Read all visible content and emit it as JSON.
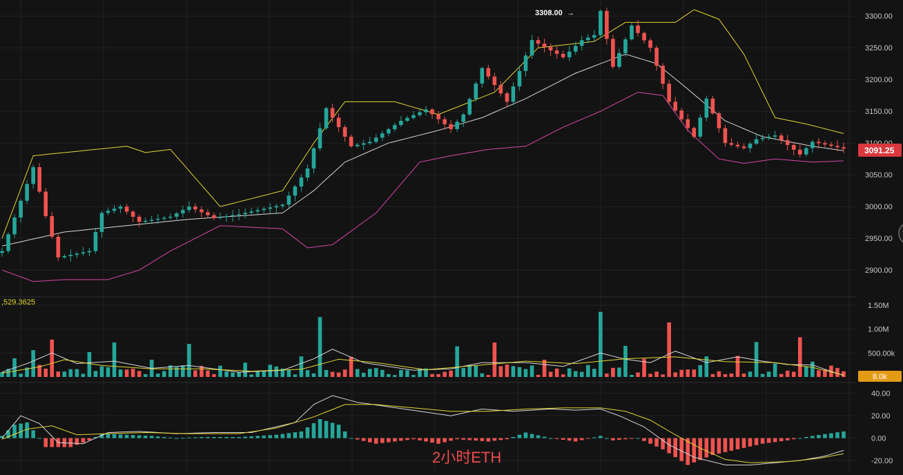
{
  "colors": {
    "background": "#131313",
    "grid": "#232323",
    "up": "#26a69a",
    "down": "#ef5350",
    "bb_upper": "#e6d633",
    "bb_middle": "#d8d8d8",
    "bb_lower": "#d946a8",
    "price_badge": "#d9393e",
    "volume_badge": "#e39b16",
    "watermark": "#ef4b4b",
    "axis_text": "#c9c9c9"
  },
  "labels": {
    "watermark": "2小时ETH",
    "high_marker": "3308.00",
    "high_marker_arrow": "→",
    "current_price": "3091.25",
    "volume_current": "8.0k",
    "volume_readout": ",529.3625"
  },
  "chart_data": [
    {
      "type": "candlestick",
      "title": "",
      "ylim": [
        2860,
        3310
      ],
      "y_ticks": [
        "3300.00",
        "3250.00",
        "3200.00",
        "3150.00",
        "3100.00",
        "3050.00",
        "3000.00",
        "2950.00",
        "2900.00"
      ],
      "y_tick_values": [
        3300,
        3250,
        3200,
        3150,
        3100,
        3050,
        3000,
        2950,
        2900
      ],
      "high": 3308.0,
      "last_price": 3091.25,
      "bars_count": 136,
      "waypoints": [
        [
          0,
          2930
        ],
        [
          5,
          3062
        ],
        [
          7,
          2985
        ],
        [
          9,
          2920
        ],
        [
          14,
          2930
        ],
        [
          16,
          2990
        ],
        [
          19,
          3000
        ],
        [
          22,
          2976
        ],
        [
          27,
          2984
        ],
        [
          30,
          3000
        ],
        [
          34,
          2982
        ],
        [
          38,
          2988
        ],
        [
          45,
          3003
        ],
        [
          49,
          3060
        ],
        [
          52,
          3155
        ],
        [
          56,
          3095
        ],
        [
          59,
          3102
        ],
        [
          64,
          3135
        ],
        [
          68,
          3153
        ],
        [
          72,
          3122
        ],
        [
          74,
          3145
        ],
        [
          77,
          3218
        ],
        [
          81,
          3165
        ],
        [
          85,
          3262
        ],
        [
          90,
          3235
        ],
        [
          93,
          3262
        ],
        [
          95,
          3270
        ],
        [
          96,
          3308
        ],
        [
          98,
          3220
        ],
        [
          101,
          3285
        ],
        [
          104,
          3250
        ],
        [
          107,
          3165
        ],
        [
          111,
          3110
        ],
        [
          113,
          3170
        ],
        [
          116,
          3100
        ],
        [
          119,
          3092
        ],
        [
          121,
          3106
        ],
        [
          124,
          3112
        ],
        [
          128,
          3082
        ],
        [
          130,
          3102
        ],
        [
          135,
          3091.25
        ]
      ],
      "bollinger": {
        "upper": [
          [
            0,
            2950
          ],
          [
            5,
            3080
          ],
          [
            10,
            3085
          ],
          [
            20,
            3095
          ],
          [
            23,
            3085
          ],
          [
            27,
            3090
          ],
          [
            35,
            3000
          ],
          [
            45,
            3025
          ],
          [
            50,
            3100
          ],
          [
            55,
            3165
          ],
          [
            63,
            3165
          ],
          [
            70,
            3145
          ],
          [
            79,
            3180
          ],
          [
            86,
            3250
          ],
          [
            95,
            3260
          ],
          [
            100,
            3290
          ],
          [
            108,
            3290
          ],
          [
            111,
            3310
          ],
          [
            115,
            3295
          ],
          [
            119,
            3240
          ],
          [
            124,
            3140
          ],
          [
            129,
            3130
          ],
          [
            135,
            3115
          ]
        ],
        "middle": [
          [
            0,
            2938
          ],
          [
            10,
            2960
          ],
          [
            20,
            2970
          ],
          [
            30,
            2980
          ],
          [
            45,
            2990
          ],
          [
            50,
            3025
          ],
          [
            55,
            3070
          ],
          [
            62,
            3100
          ],
          [
            70,
            3120
          ],
          [
            77,
            3140
          ],
          [
            84,
            3170
          ],
          [
            92,
            3210
          ],
          [
            100,
            3240
          ],
          [
            105,
            3225
          ],
          [
            110,
            3185
          ],
          [
            116,
            3135
          ],
          [
            122,
            3110
          ],
          [
            130,
            3095
          ],
          [
            135,
            3088
          ]
        ],
        "lower": [
          [
            0,
            2900
          ],
          [
            5,
            2882
          ],
          [
            10,
            2885
          ],
          [
            17,
            2885
          ],
          [
            22,
            2900
          ],
          [
            27,
            2930
          ],
          [
            35,
            2970
          ],
          [
            45,
            2965
          ],
          [
            49,
            2935
          ],
          [
            53,
            2940
          ],
          [
            60,
            2990
          ],
          [
            67,
            3070
          ],
          [
            72,
            3080
          ],
          [
            78,
            3090
          ],
          [
            84,
            3095
          ],
          [
            90,
            3125
          ],
          [
            96,
            3150
          ],
          [
            102,
            3180
          ],
          [
            106,
            3175
          ],
          [
            110,
            3120
          ],
          [
            115,
            3075
          ],
          [
            119,
            3068
          ],
          [
            124,
            3075
          ],
          [
            130,
            3070
          ],
          [
            135,
            3072
          ]
        ]
      }
    },
    {
      "type": "bar",
      "title": "",
      "ylim": [
        0,
        1500000
      ],
      "y_ticks": [
        "1.50M",
        "1.00M",
        "500.00k"
      ],
      "y_tick_values": [
        1500000,
        1000000,
        500000
      ],
      "last_volume_label": "8.0k",
      "spikes": [
        [
          2,
          390000
        ],
        [
          5,
          560000
        ],
        [
          8,
          780000
        ],
        [
          14,
          520000
        ],
        [
          18,
          720000
        ],
        [
          24,
          360000
        ],
        [
          30,
          690000
        ],
        [
          39,
          300000
        ],
        [
          48,
          430000
        ],
        [
          51,
          1250000
        ],
        [
          56,
          420000
        ],
        [
          68,
          180000
        ],
        [
          73,
          640000
        ],
        [
          79,
          720000
        ],
        [
          87,
          360000
        ],
        [
          96,
          1360000
        ],
        [
          100,
          650000
        ],
        [
          103,
          380000
        ],
        [
          107,
          1140000
        ],
        [
          113,
          430000
        ],
        [
          118,
          440000
        ],
        [
          121,
          730000
        ],
        [
          124,
          280000
        ],
        [
          128,
          830000
        ],
        [
          130,
          320000
        ]
      ],
      "ma_fast": [
        [
          0,
          100000
        ],
        [
          4,
          280000
        ],
        [
          8,
          500000
        ],
        [
          12,
          280000
        ],
        [
          18,
          330000
        ],
        [
          24,
          180000
        ],
        [
          30,
          240000
        ],
        [
          38,
          100000
        ],
        [
          45,
          140000
        ],
        [
          50,
          380000
        ],
        [
          53,
          580000
        ],
        [
          58,
          300000
        ],
        [
          66,
          140000
        ],
        [
          72,
          170000
        ],
        [
          77,
          300000
        ],
        [
          84,
          300000
        ],
        [
          90,
          220000
        ],
        [
          96,
          500000
        ],
        [
          100,
          370000
        ],
        [
          104,
          300000
        ],
        [
          108,
          540000
        ],
        [
          113,
          300000
        ],
        [
          118,
          420000
        ],
        [
          122,
          330000
        ],
        [
          126,
          260000
        ],
        [
          130,
          250000
        ],
        [
          135,
          30000
        ]
      ],
      "ma_slow": [
        [
          0,
          80000
        ],
        [
          6,
          210000
        ],
        [
          10,
          360000
        ],
        [
          16,
          240000
        ],
        [
          24,
          170000
        ],
        [
          32,
          170000
        ],
        [
          40,
          120000
        ],
        [
          48,
          160000
        ],
        [
          54,
          370000
        ],
        [
          60,
          300000
        ],
        [
          68,
          150000
        ],
        [
          76,
          240000
        ],
        [
          84,
          330000
        ],
        [
          92,
          280000
        ],
        [
          100,
          380000
        ],
        [
          108,
          420000
        ],
        [
          116,
          320000
        ],
        [
          124,
          300000
        ],
        [
          130,
          200000
        ],
        [
          135,
          40000
        ]
      ]
    },
    {
      "type": "bar",
      "title": "",
      "ylim": [
        -28,
        46
      ],
      "y_ticks": [
        "40.00",
        "20.00",
        "0.00",
        "-20.00"
      ],
      "y_tick_values": [
        40,
        20,
        0,
        -20
      ],
      "histogram": [
        [
          0,
          2
        ],
        [
          2,
          12
        ],
        [
          4,
          14
        ],
        [
          6,
          0
        ],
        [
          7,
          -8
        ],
        [
          11,
          -8
        ],
        [
          14,
          -2
        ],
        [
          16,
          4
        ],
        [
          20,
          3
        ],
        [
          24,
          2
        ],
        [
          28,
          0
        ],
        [
          32,
          1
        ],
        [
          38,
          1
        ],
        [
          44,
          3
        ],
        [
          48,
          6
        ],
        [
          51,
          17
        ],
        [
          54,
          12
        ],
        [
          56,
          0
        ],
        [
          60,
          -5
        ],
        [
          66,
          -1
        ],
        [
          70,
          -5
        ],
        [
          73,
          -1
        ],
        [
          78,
          -3
        ],
        [
          81,
          -1
        ],
        [
          84,
          5
        ],
        [
          88,
          0
        ],
        [
          92,
          -3
        ],
        [
          96,
          2
        ],
        [
          98,
          -2
        ],
        [
          102,
          0
        ],
        [
          106,
          -10
        ],
        [
          110,
          -24
        ],
        [
          114,
          -15
        ],
        [
          118,
          -10
        ],
        [
          122,
          -5
        ],
        [
          126,
          -2
        ],
        [
          130,
          2
        ],
        [
          135,
          6
        ]
      ],
      "macd": [
        [
          0,
          0
        ],
        [
          3,
          20
        ],
        [
          6,
          13
        ],
        [
          9,
          -4
        ],
        [
          13,
          -5
        ],
        [
          17,
          5
        ],
        [
          22,
          6
        ],
        [
          28,
          4
        ],
        [
          34,
          5
        ],
        [
          40,
          5
        ],
        [
          47,
          14
        ],
        [
          50,
          30
        ],
        [
          53,
          38
        ],
        [
          57,
          32
        ],
        [
          62,
          28
        ],
        [
          67,
          24
        ],
        [
          72,
          20
        ],
        [
          77,
          26
        ],
        [
          82,
          24
        ],
        [
          88,
          26
        ],
        [
          92,
          25
        ],
        [
          96,
          26
        ],
        [
          99,
          20
        ],
        [
          103,
          10
        ],
        [
          107,
          -6
        ],
        [
          111,
          -17
        ],
        [
          116,
          -24
        ],
        [
          120,
          -24
        ],
        [
          124,
          -22
        ],
        [
          128,
          -20
        ],
        [
          132,
          -16
        ],
        [
          135,
          -11
        ]
      ],
      "signal": [
        [
          0,
          -1
        ],
        [
          4,
          8
        ],
        [
          8,
          11
        ],
        [
          12,
          3
        ],
        [
          17,
          4
        ],
        [
          23,
          5
        ],
        [
          30,
          4
        ],
        [
          38,
          4
        ],
        [
          44,
          9
        ],
        [
          50,
          19
        ],
        [
          55,
          30
        ],
        [
          60,
          30
        ],
        [
          66,
          27
        ],
        [
          72,
          24
        ],
        [
          78,
          24
        ],
        [
          84,
          26
        ],
        [
          90,
          27
        ],
        [
          96,
          27
        ],
        [
          100,
          24
        ],
        [
          104,
          16
        ],
        [
          108,
          3
        ],
        [
          112,
          -9
        ],
        [
          116,
          -19
        ],
        [
          120,
          -22
        ],
        [
          126,
          -21
        ],
        [
          131,
          -18
        ],
        [
          135,
          -14
        ]
      ]
    }
  ]
}
